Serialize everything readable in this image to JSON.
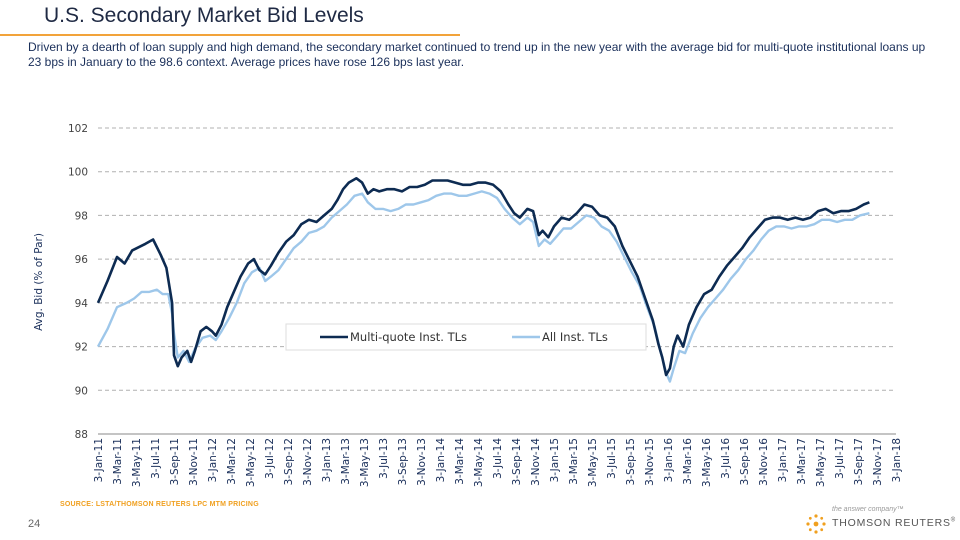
{
  "header": {
    "title": "U.S. Secondary Market Bid Levels",
    "subtitle": "Driven by a dearth of loan supply and high demand, the secondary market continued to trend up in the new year with the average bid for multi-quote institutional loans up 23 bps in January to the 98.6 context. Average prices have rose 126 bps last year."
  },
  "footer": {
    "source": "SOURCE: LSTA/THOMSON REUTERS LPC MTM PRICING",
    "page_number": "24",
    "logo_tagline": "the answer company™",
    "logo_name": "THOMSON REUTERS",
    "logo_trademark": "®"
  },
  "colors": {
    "multi_quote": "#0d2b52",
    "all_inst": "#9ec7ea",
    "grid": "#b0b0b0"
  },
  "chart_data": {
    "type": "line",
    "title": "",
    "xlabel": "",
    "ylabel": "Avg. Bid (% of Par)",
    "ylim": [
      88,
      102
    ],
    "yticks": [
      88,
      90,
      92,
      94,
      96,
      98,
      100,
      102
    ],
    "grid": true,
    "legend_position": "bottom-center",
    "categories": [
      "3-Jan-11",
      "3-Mar-11",
      "3-May-11",
      "3-Jul-11",
      "3-Sep-11",
      "3-Nov-11",
      "3-Jan-12",
      "3-Mar-12",
      "3-May-12",
      "3-Jul-12",
      "3-Sep-12",
      "3-Nov-12",
      "3-Jan-13",
      "3-Mar-13",
      "3-May-13",
      "3-Jul-13",
      "3-Sep-13",
      "3-Nov-13",
      "3-Jan-14",
      "3-Mar-14",
      "3-May-14",
      "3-Jul-14",
      "3-Sep-14",
      "3-Nov-14",
      "3-Jan-15",
      "3-Mar-15",
      "3-May-15",
      "3-Jul-15",
      "3-Sep-15",
      "3-Nov-15",
      "3-Jan-16",
      "3-Mar-16",
      "3-May-16",
      "3-Jul-16",
      "3-Sep-16",
      "3-Nov-16",
      "3-Jan-17",
      "3-Mar-17",
      "3-May-17",
      "3-Jul-17",
      "3-Sep-17",
      "3-Nov-17",
      "3-Jan-18"
    ],
    "series": [
      {
        "name": "Multi-quote Inst. TLs",
        "key": "multi_quote",
        "points": [
          [
            0,
            94.0
          ],
          [
            0.5,
            95.0
          ],
          [
            1.0,
            96.1
          ],
          [
            1.4,
            95.8
          ],
          [
            1.8,
            96.4
          ],
          [
            2.5,
            96.7
          ],
          [
            2.9,
            96.9
          ],
          [
            3.3,
            96.2
          ],
          [
            3.6,
            95.6
          ],
          [
            3.9,
            94.0
          ],
          [
            4.0,
            91.6
          ],
          [
            4.2,
            91.1
          ],
          [
            4.4,
            91.5
          ],
          [
            4.7,
            91.8
          ],
          [
            4.9,
            91.3
          ],
          [
            5.1,
            91.8
          ],
          [
            5.4,
            92.7
          ],
          [
            5.7,
            92.9
          ],
          [
            6.0,
            92.7
          ],
          [
            6.2,
            92.5
          ],
          [
            6.5,
            93.0
          ],
          [
            6.8,
            93.8
          ],
          [
            7.2,
            94.6
          ],
          [
            7.5,
            95.2
          ],
          [
            7.9,
            95.8
          ],
          [
            8.2,
            96.0
          ],
          [
            8.5,
            95.5
          ],
          [
            8.8,
            95.3
          ],
          [
            9.1,
            95.7
          ],
          [
            9.5,
            96.3
          ],
          [
            9.9,
            96.8
          ],
          [
            10.3,
            97.1
          ],
          [
            10.7,
            97.6
          ],
          [
            11.1,
            97.8
          ],
          [
            11.5,
            97.7
          ],
          [
            11.9,
            98.0
          ],
          [
            12.3,
            98.3
          ],
          [
            12.6,
            98.7
          ],
          [
            12.9,
            99.2
          ],
          [
            13.2,
            99.5
          ],
          [
            13.6,
            99.7
          ],
          [
            13.9,
            99.5
          ],
          [
            14.2,
            99.0
          ],
          [
            14.5,
            99.2
          ],
          [
            14.8,
            99.1
          ],
          [
            15.2,
            99.2
          ],
          [
            15.6,
            99.2
          ],
          [
            16.0,
            99.1
          ],
          [
            16.4,
            99.3
          ],
          [
            16.8,
            99.3
          ],
          [
            17.2,
            99.4
          ],
          [
            17.6,
            99.6
          ],
          [
            18.0,
            99.6
          ],
          [
            18.4,
            99.6
          ],
          [
            18.8,
            99.5
          ],
          [
            19.2,
            99.4
          ],
          [
            19.6,
            99.4
          ],
          [
            20.0,
            99.5
          ],
          [
            20.4,
            99.5
          ],
          [
            20.8,
            99.4
          ],
          [
            21.2,
            99.1
          ],
          [
            21.6,
            98.5
          ],
          [
            21.9,
            98.1
          ],
          [
            22.2,
            97.9
          ],
          [
            22.6,
            98.3
          ],
          [
            22.9,
            98.2
          ],
          [
            23.2,
            97.1
          ],
          [
            23.4,
            97.3
          ],
          [
            23.7,
            97.0
          ],
          [
            24.0,
            97.5
          ],
          [
            24.4,
            97.9
          ],
          [
            24.8,
            97.8
          ],
          [
            25.2,
            98.1
          ],
          [
            25.6,
            98.5
          ],
          [
            26.0,
            98.4
          ],
          [
            26.4,
            98.0
          ],
          [
            26.8,
            97.9
          ],
          [
            27.2,
            97.5
          ],
          [
            27.6,
            96.6
          ],
          [
            28.0,
            95.9
          ],
          [
            28.4,
            95.2
          ],
          [
            28.8,
            94.2
          ],
          [
            29.2,
            93.2
          ],
          [
            29.5,
            92.1
          ],
          [
            29.7,
            91.5
          ],
          [
            29.9,
            90.7
          ],
          [
            30.1,
            91.0
          ],
          [
            30.3,
            92.0
          ],
          [
            30.5,
            92.5
          ],
          [
            30.8,
            92.0
          ],
          [
            31.1,
            93.0
          ],
          [
            31.5,
            93.8
          ],
          [
            31.9,
            94.4
          ],
          [
            32.3,
            94.6
          ],
          [
            32.7,
            95.2
          ],
          [
            33.1,
            95.7
          ],
          [
            33.5,
            96.1
          ],
          [
            33.9,
            96.5
          ],
          [
            34.3,
            97.0
          ],
          [
            34.7,
            97.4
          ],
          [
            35.1,
            97.8
          ],
          [
            35.5,
            97.9
          ],
          [
            35.9,
            97.9
          ],
          [
            36.3,
            97.8
          ],
          [
            36.7,
            97.9
          ],
          [
            37.1,
            97.8
          ],
          [
            37.5,
            97.9
          ],
          [
            37.9,
            98.2
          ],
          [
            38.3,
            98.3
          ],
          [
            38.7,
            98.1
          ],
          [
            39.1,
            98.2
          ],
          [
            39.5,
            98.2
          ],
          [
            39.9,
            98.3
          ],
          [
            40.3,
            98.5
          ],
          [
            40.6,
            98.6
          ]
        ]
      },
      {
        "name": "All Inst. TLs",
        "key": "all_inst",
        "points": [
          [
            0,
            92.0
          ],
          [
            0.5,
            92.8
          ],
          [
            1.0,
            93.8
          ],
          [
            1.5,
            94.0
          ],
          [
            1.9,
            94.2
          ],
          [
            2.3,
            94.5
          ],
          [
            2.7,
            94.5
          ],
          [
            3.1,
            94.6
          ],
          [
            3.4,
            94.4
          ],
          [
            3.7,
            94.4
          ],
          [
            3.9,
            93.5
          ],
          [
            4.0,
            92.6
          ],
          [
            4.2,
            91.5
          ],
          [
            4.5,
            91.8
          ],
          [
            4.8,
            91.3
          ],
          [
            5.1,
            91.9
          ],
          [
            5.5,
            92.4
          ],
          [
            5.9,
            92.5
          ],
          [
            6.2,
            92.3
          ],
          [
            6.5,
            92.7
          ],
          [
            6.9,
            93.3
          ],
          [
            7.3,
            94.0
          ],
          [
            7.7,
            94.9
          ],
          [
            8.1,
            95.4
          ],
          [
            8.5,
            95.6
          ],
          [
            8.8,
            95.0
          ],
          [
            9.1,
            95.2
          ],
          [
            9.5,
            95.5
          ],
          [
            9.9,
            96.0
          ],
          [
            10.3,
            96.5
          ],
          [
            10.7,
            96.8
          ],
          [
            11.1,
            97.2
          ],
          [
            11.5,
            97.3
          ],
          [
            11.9,
            97.5
          ],
          [
            12.3,
            97.9
          ],
          [
            12.7,
            98.2
          ],
          [
            13.1,
            98.5
          ],
          [
            13.5,
            98.9
          ],
          [
            13.9,
            99.0
          ],
          [
            14.2,
            98.6
          ],
          [
            14.6,
            98.3
          ],
          [
            15.0,
            98.3
          ],
          [
            15.4,
            98.2
          ],
          [
            15.8,
            98.3
          ],
          [
            16.2,
            98.5
          ],
          [
            16.6,
            98.5
          ],
          [
            17.0,
            98.6
          ],
          [
            17.4,
            98.7
          ],
          [
            17.8,
            98.9
          ],
          [
            18.2,
            99.0
          ],
          [
            18.6,
            99.0
          ],
          [
            19.0,
            98.9
          ],
          [
            19.4,
            98.9
          ],
          [
            19.8,
            99.0
          ],
          [
            20.2,
            99.1
          ],
          [
            20.6,
            99.0
          ],
          [
            21.0,
            98.8
          ],
          [
            21.4,
            98.3
          ],
          [
            21.8,
            97.9
          ],
          [
            22.2,
            97.6
          ],
          [
            22.6,
            97.9
          ],
          [
            22.9,
            97.7
          ],
          [
            23.2,
            96.6
          ],
          [
            23.5,
            96.9
          ],
          [
            23.8,
            96.7
          ],
          [
            24.1,
            97.0
          ],
          [
            24.5,
            97.4
          ],
          [
            24.9,
            97.4
          ],
          [
            25.3,
            97.7
          ],
          [
            25.7,
            98.0
          ],
          [
            26.1,
            97.9
          ],
          [
            26.5,
            97.5
          ],
          [
            26.9,
            97.3
          ],
          [
            27.3,
            96.8
          ],
          [
            27.7,
            96.1
          ],
          [
            28.1,
            95.4
          ],
          [
            28.5,
            94.8
          ],
          [
            28.9,
            93.8
          ],
          [
            29.3,
            92.9
          ],
          [
            29.6,
            91.8
          ],
          [
            29.9,
            90.8
          ],
          [
            30.1,
            90.4
          ],
          [
            30.3,
            91.0
          ],
          [
            30.6,
            91.8
          ],
          [
            30.9,
            91.7
          ],
          [
            31.3,
            92.6
          ],
          [
            31.7,
            93.3
          ],
          [
            32.1,
            93.8
          ],
          [
            32.5,
            94.2
          ],
          [
            32.9,
            94.6
          ],
          [
            33.3,
            95.1
          ],
          [
            33.7,
            95.5
          ],
          [
            34.1,
            96.0
          ],
          [
            34.5,
            96.4
          ],
          [
            34.9,
            96.9
          ],
          [
            35.3,
            97.3
          ],
          [
            35.7,
            97.5
          ],
          [
            36.1,
            97.5
          ],
          [
            36.5,
            97.4
          ],
          [
            36.9,
            97.5
          ],
          [
            37.3,
            97.5
          ],
          [
            37.7,
            97.6
          ],
          [
            38.1,
            97.8
          ],
          [
            38.5,
            97.8
          ],
          [
            38.9,
            97.7
          ],
          [
            39.3,
            97.8
          ],
          [
            39.7,
            97.8
          ],
          [
            40.1,
            98.0
          ],
          [
            40.6,
            98.1
          ]
        ]
      }
    ]
  }
}
